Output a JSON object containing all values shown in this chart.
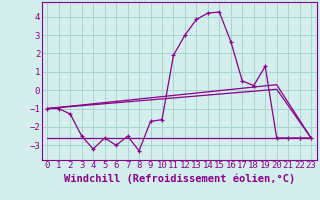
{
  "xlabel": "Windchill (Refroidissement éolien,°C)",
  "background_color": "#d4eeee",
  "grid_color": "#a8d4d4",
  "line_color": "#880088",
  "xlim": [
    -0.5,
    23.5
  ],
  "ylim": [
    -3.8,
    4.8
  ],
  "yticks": [
    -3,
    -2,
    -1,
    0,
    1,
    2,
    3,
    4
  ],
  "xticks": [
    0,
    1,
    2,
    3,
    4,
    5,
    6,
    7,
    8,
    9,
    10,
    11,
    12,
    13,
    14,
    15,
    16,
    17,
    18,
    19,
    20,
    21,
    22,
    23
  ],
  "curve1_x": [
    0,
    1,
    2,
    3,
    4,
    5,
    6,
    7,
    8,
    9,
    10,
    11,
    12,
    13,
    14,
    15,
    16,
    17,
    18,
    19,
    20,
    21,
    22,
    23
  ],
  "curve1_y": [
    -1.0,
    -1.0,
    -1.3,
    -2.5,
    -3.2,
    -2.6,
    -3.0,
    -2.5,
    -3.3,
    -1.7,
    -1.6,
    1.9,
    3.0,
    3.85,
    4.2,
    4.25,
    2.65,
    0.5,
    0.25,
    1.3,
    -2.6,
    -2.6,
    -2.6,
    -2.6
  ],
  "curve2_x": [
    0,
    20,
    23
  ],
  "curve2_y": [
    -1.0,
    0.3,
    -2.6
  ],
  "curve3_x": [
    0,
    20,
    23
  ],
  "curve3_y": [
    -1.0,
    0.05,
    -2.6
  ],
  "curve4_x": [
    0,
    23
  ],
  "curve4_y": [
    -2.6,
    -2.6
  ],
  "xlabel_fontsize": 7.5,
  "tick_fontsize": 6.5
}
